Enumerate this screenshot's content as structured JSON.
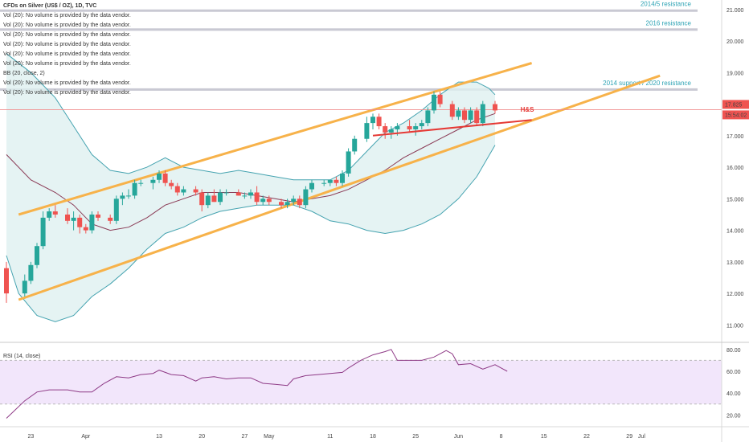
{
  "chart_data": {
    "type": "candlestick",
    "header": {
      "title": "CFDs on Silver (US$ / OZ), 1D, TVC",
      "indicator_lines": [
        "Vol (20): No volume is provided by the data vendor.",
        "Vol (20): No volume is provided by the data vendor.",
        "Vol (20): No volume is provided by the data vendor.",
        "Vol (20): No volume is provided by the data vendor.",
        "Vol (20): No volume is provided by the data vendor.",
        "Vol (20): No volume is provided by the data vendor.",
        "BB (20, close, 2)",
        "Vol (20): No volume is provided by the data vendor.",
        "Vol (20): No volume is provided by the data vendor."
      ]
    },
    "price_axis": {
      "ticks": [
        "21.000",
        "20.000",
        "19.000",
        "18.000",
        "17.000",
        "16.000",
        "15.000",
        "14.000",
        "13.000",
        "12.000",
        "11.000"
      ],
      "ylim": [
        10.5,
        21.3
      ],
      "last_price": "17.825",
      "countdown": "15:54:02"
    },
    "date_axis": {
      "ticks": [
        {
          "label": "23",
          "day": 4
        },
        {
          "label": "Apr",
          "day": 13
        },
        {
          "label": "13",
          "day": 25
        },
        {
          "label": "20",
          "day": 32
        },
        {
          "label": "27",
          "day": 39
        },
        {
          "label": "May",
          "day": 43
        },
        {
          "label": "11",
          "day": 53
        },
        {
          "label": "18",
          "day": 60
        },
        {
          "label": "25",
          "day": 67
        },
        {
          "label": "Jun",
          "day": 74
        },
        {
          "label": "8",
          "day": 81
        },
        {
          "label": "15",
          "day": 88
        },
        {
          "label": "22",
          "day": 95
        },
        {
          "label": "29",
          "day": 102
        },
        {
          "label": "Jul",
          "day": 104
        }
      ]
    },
    "candles": [
      {
        "day": 0,
        "o": 12.8,
        "h": 13.0,
        "l": 11.7,
        "c": 12.0
      },
      {
        "day": 3,
        "o": 12.0,
        "h": 12.6,
        "l": 11.9,
        "c": 12.4
      },
      {
        "day": 4,
        "o": 12.4,
        "h": 13.0,
        "l": 12.3,
        "c": 12.9
      },
      {
        "day": 5,
        "o": 12.9,
        "h": 13.6,
        "l": 12.8,
        "c": 13.5
      },
      {
        "day": 6,
        "o": 13.5,
        "h": 14.6,
        "l": 13.4,
        "c": 14.4
      },
      {
        "day": 7,
        "o": 14.4,
        "h": 14.7,
        "l": 14.3,
        "c": 14.6
      },
      {
        "day": 8,
        "o": 14.6,
        "h": 14.8,
        "l": 14.4,
        "c": 14.5
      },
      {
        "day": 10,
        "o": 14.5,
        "h": 14.7,
        "l": 14.2,
        "c": 14.3
      },
      {
        "day": 11,
        "o": 14.3,
        "h": 14.6,
        "l": 14.0,
        "c": 14.4
      },
      {
        "day": 12,
        "o": 14.4,
        "h": 14.5,
        "l": 13.9,
        "c": 14.1
      },
      {
        "day": 13,
        "o": 14.1,
        "h": 14.2,
        "l": 13.9,
        "c": 14.0
      },
      {
        "day": 14,
        "o": 14.0,
        "h": 14.6,
        "l": 13.9,
        "c": 14.5
      },
      {
        "day": 15,
        "o": 14.5,
        "h": 14.6,
        "l": 14.3,
        "c": 14.4
      },
      {
        "day": 17,
        "o": 14.4,
        "h": 14.5,
        "l": 14.2,
        "c": 14.3
      },
      {
        "day": 18,
        "o": 14.3,
        "h": 15.1,
        "l": 14.2,
        "c": 15.0
      },
      {
        "day": 19,
        "o": 15.0,
        "h": 15.2,
        "l": 14.8,
        "c": 15.1
      },
      {
        "day": 20,
        "o": 15.1,
        "h": 15.3,
        "l": 15.0,
        "c": 15.1
      },
      {
        "day": 21,
        "o": 15.1,
        "h": 15.6,
        "l": 15.0,
        "c": 15.5
      },
      {
        "day": 22,
        "o": 15.5,
        "h": 15.6,
        "l": 15.4,
        "c": 15.5
      },
      {
        "day": 24,
        "o": 15.5,
        "h": 15.7,
        "l": 15.3,
        "c": 15.6
      },
      {
        "day": 25,
        "o": 15.6,
        "h": 15.9,
        "l": 15.5,
        "c": 15.8
      },
      {
        "day": 26,
        "o": 15.8,
        "h": 15.9,
        "l": 15.4,
        "c": 15.5
      },
      {
        "day": 27,
        "o": 15.5,
        "h": 15.6,
        "l": 15.3,
        "c": 15.4
      },
      {
        "day": 28,
        "o": 15.4,
        "h": 15.5,
        "l": 15.1,
        "c": 15.2
      },
      {
        "day": 29,
        "o": 15.2,
        "h": 15.4,
        "l": 15.1,
        "c": 15.3
      },
      {
        "day": 31,
        "o": 15.3,
        "h": 15.4,
        "l": 15.1,
        "c": 15.2
      },
      {
        "day": 32,
        "o": 15.2,
        "h": 15.3,
        "l": 14.6,
        "c": 14.8
      },
      {
        "day": 33,
        "o": 14.8,
        "h": 15.2,
        "l": 14.7,
        "c": 15.1
      },
      {
        "day": 34,
        "o": 15.1,
        "h": 15.3,
        "l": 14.9,
        "c": 14.9
      },
      {
        "day": 35,
        "o": 14.9,
        "h": 15.3,
        "l": 14.8,
        "c": 15.2
      },
      {
        "day": 36,
        "o": 15.2,
        "h": 15.3,
        "l": 15.1,
        "c": 15.2
      },
      {
        "day": 38,
        "o": 15.2,
        "h": 15.3,
        "l": 15.1,
        "c": 15.1
      },
      {
        "day": 39,
        "o": 15.1,
        "h": 15.2,
        "l": 15.0,
        "c": 15.1
      },
      {
        "day": 40,
        "o": 15.1,
        "h": 15.3,
        "l": 15.0,
        "c": 15.2
      },
      {
        "day": 41,
        "o": 15.2,
        "h": 15.4,
        "l": 14.8,
        "c": 14.9
      },
      {
        "day": 42,
        "o": 14.9,
        "h": 15.1,
        "l": 14.8,
        "c": 15.0
      },
      {
        "day": 43,
        "o": 15.0,
        "h": 15.1,
        "l": 14.8,
        "c": 14.9
      },
      {
        "day": 45,
        "o": 14.9,
        "h": 15.0,
        "l": 14.7,
        "c": 14.8
      },
      {
        "day": 46,
        "o": 14.8,
        "h": 15.0,
        "l": 14.7,
        "c": 14.9
      },
      {
        "day": 47,
        "o": 14.9,
        "h": 15.1,
        "l": 14.8,
        "c": 15.0
      },
      {
        "day": 48,
        "o": 15.0,
        "h": 15.1,
        "l": 14.7,
        "c": 14.8
      },
      {
        "day": 49,
        "o": 14.8,
        "h": 15.4,
        "l": 14.7,
        "c": 15.3
      },
      {
        "day": 50,
        "o": 15.3,
        "h": 15.6,
        "l": 15.2,
        "c": 15.5
      },
      {
        "day": 52,
        "o": 15.5,
        "h": 15.6,
        "l": 15.4,
        "c": 15.5
      },
      {
        "day": 53,
        "o": 15.5,
        "h": 15.6,
        "l": 15.4,
        "c": 15.6
      },
      {
        "day": 54,
        "o": 15.6,
        "h": 15.7,
        "l": 15.4,
        "c": 15.5
      },
      {
        "day": 55,
        "o": 15.5,
        "h": 15.9,
        "l": 15.4,
        "c": 15.8
      },
      {
        "day": 56,
        "o": 15.8,
        "h": 16.6,
        "l": 15.7,
        "c": 16.5
      },
      {
        "day": 57,
        "o": 16.5,
        "h": 17.0,
        "l": 16.4,
        "c": 16.9
      },
      {
        "day": 59,
        "o": 16.9,
        "h": 17.6,
        "l": 16.8,
        "c": 17.4
      },
      {
        "day": 60,
        "o": 17.4,
        "h": 17.7,
        "l": 17.2,
        "c": 17.6
      },
      {
        "day": 61,
        "o": 17.6,
        "h": 17.7,
        "l": 17.2,
        "c": 17.3
      },
      {
        "day": 62,
        "o": 17.3,
        "h": 17.4,
        "l": 16.9,
        "c": 17.1
      },
      {
        "day": 63,
        "o": 17.1,
        "h": 17.3,
        "l": 16.9,
        "c": 17.2
      },
      {
        "day": 64,
        "o": 17.2,
        "h": 17.4,
        "l": 17.0,
        "c": 17.3
      },
      {
        "day": 66,
        "o": 17.3,
        "h": 17.5,
        "l": 17.1,
        "c": 17.2
      },
      {
        "day": 67,
        "o": 17.2,
        "h": 17.4,
        "l": 17.0,
        "c": 17.3
      },
      {
        "day": 68,
        "o": 17.3,
        "h": 17.5,
        "l": 17.2,
        "c": 17.4
      },
      {
        "day": 69,
        "o": 17.4,
        "h": 17.9,
        "l": 17.3,
        "c": 17.8
      },
      {
        "day": 70,
        "o": 17.8,
        "h": 18.4,
        "l": 17.7,
        "c": 18.3
      },
      {
        "day": 71,
        "o": 18.3,
        "h": 18.4,
        "l": 17.9,
        "c": 18.0
      },
      {
        "day": 73,
        "o": 18.0,
        "h": 18.1,
        "l": 17.5,
        "c": 17.6
      },
      {
        "day": 74,
        "o": 17.6,
        "h": 17.9,
        "l": 17.5,
        "c": 17.8
      },
      {
        "day": 75,
        "o": 17.8,
        "h": 17.9,
        "l": 17.4,
        "c": 17.5
      },
      {
        "day": 76,
        "o": 17.5,
        "h": 17.9,
        "l": 17.4,
        "c": 17.8
      },
      {
        "day": 77,
        "o": 17.8,
        "h": 17.9,
        "l": 17.3,
        "c": 17.4
      },
      {
        "day": 78,
        "o": 17.4,
        "h": 18.1,
        "l": 17.3,
        "c": 18.0
      },
      {
        "day": 80,
        "o": 18.0,
        "h": 18.1,
        "l": 17.7,
        "c": 17.8
      }
    ],
    "bollinger": {
      "upper": [
        [
          0,
          19.6
        ],
        [
          4,
          19.0
        ],
        [
          8,
          18.2
        ],
        [
          11,
          17.3
        ],
        [
          14,
          16.4
        ],
        [
          17,
          15.9
        ],
        [
          20,
          15.8
        ],
        [
          23,
          16.0
        ],
        [
          26,
          16.3
        ],
        [
          29,
          16.0
        ],
        [
          32,
          15.9
        ],
        [
          35,
          15.8
        ],
        [
          38,
          15.9
        ],
        [
          41,
          15.8
        ],
        [
          44,
          15.7
        ],
        [
          47,
          15.6
        ],
        [
          50,
          15.6
        ],
        [
          53,
          15.6
        ],
        [
          56,
          15.9
        ],
        [
          59,
          16.5
        ],
        [
          62,
          17.1
        ],
        [
          65,
          17.4
        ],
        [
          68,
          17.8
        ],
        [
          71,
          18.3
        ],
        [
          74,
          18.7
        ],
        [
          77,
          18.7
        ],
        [
          79,
          18.5
        ],
        [
          80,
          18.3
        ]
      ],
      "middle": [
        [
          0,
          16.4
        ],
        [
          4,
          15.6
        ],
        [
          8,
          15.2
        ],
        [
          11,
          14.8
        ],
        [
          14,
          14.2
        ],
        [
          17,
          14.0
        ],
        [
          20,
          14.1
        ],
        [
          23,
          14.4
        ],
        [
          26,
          14.8
        ],
        [
          29,
          15.0
        ],
        [
          32,
          15.2
        ],
        [
          35,
          15.2
        ],
        [
          38,
          15.2
        ],
        [
          41,
          15.1
        ],
        [
          44,
          15.0
        ],
        [
          47,
          14.9
        ],
        [
          50,
          15.0
        ],
        [
          53,
          15.1
        ],
        [
          56,
          15.3
        ],
        [
          59,
          15.6
        ],
        [
          62,
          15.9
        ],
        [
          65,
          16.3
        ],
        [
          68,
          16.6
        ],
        [
          71,
          16.9
        ],
        [
          74,
          17.2
        ],
        [
          77,
          17.5
        ],
        [
          80,
          17.7
        ]
      ],
      "lower": [
        [
          0,
          13.2
        ],
        [
          2,
          12.0
        ],
        [
          5,
          11.3
        ],
        [
          8,
          11.1
        ],
        [
          11,
          11.3
        ],
        [
          14,
          11.9
        ],
        [
          17,
          12.3
        ],
        [
          20,
          12.8
        ],
        [
          23,
          13.4
        ],
        [
          26,
          13.9
        ],
        [
          29,
          14.1
        ],
        [
          32,
          14.4
        ],
        [
          35,
          14.6
        ],
        [
          38,
          14.7
        ],
        [
          41,
          14.8
        ],
        [
          44,
          14.8
        ],
        [
          47,
          14.8
        ],
        [
          50,
          14.6
        ],
        [
          53,
          14.3
        ],
        [
          56,
          14.2
        ],
        [
          59,
          14.0
        ],
        [
          62,
          13.9
        ],
        [
          65,
          14.0
        ],
        [
          68,
          14.2
        ],
        [
          71,
          14.5
        ],
        [
          74,
          15.0
        ],
        [
          77,
          15.7
        ],
        [
          80,
          16.7
        ]
      ]
    },
    "channel": {
      "upper_line": [
        [
          2,
          14.5
        ],
        [
          86,
          19.3
        ]
      ],
      "lower_line": [
        [
          2,
          11.8
        ],
        [
          107,
          18.9
        ]
      ]
    },
    "hs_neckline": [
      [
        60,
        17.0
      ],
      [
        86,
        17.5
      ]
    ],
    "hs_label": "H&S",
    "resistance_levels": [
      {
        "label": "2014/5 resistance",
        "value": 20.95
      },
      {
        "label": "2016 resistance",
        "value": 20.35
      },
      {
        "label": "2014 support / 2020 resistance",
        "value": 18.45
      }
    ],
    "rsi": {
      "label": "RSI (14, close)",
      "ticks": [
        "80.00",
        "60.00",
        "40.00",
        "20.00"
      ],
      "band": [
        30,
        70
      ],
      "ylim": [
        10,
        85
      ],
      "values": [
        [
          0,
          17
        ],
        [
          3,
          33
        ],
        [
          5,
          41
        ],
        [
          7,
          43
        ],
        [
          10,
          43
        ],
        [
          12,
          41
        ],
        [
          14,
          41
        ],
        [
          16,
          49
        ],
        [
          18,
          55
        ],
        [
          20,
          54
        ],
        [
          22,
          57
        ],
        [
          24,
          58
        ],
        [
          25,
          61
        ],
        [
          27,
          57
        ],
        [
          29,
          56
        ],
        [
          31,
          51
        ],
        [
          32,
          54
        ],
        [
          34,
          55
        ],
        [
          36,
          53
        ],
        [
          38,
          54
        ],
        [
          40,
          54
        ],
        [
          42,
          49
        ],
        [
          44,
          48
        ],
        [
          46,
          47
        ],
        [
          47,
          53
        ],
        [
          49,
          56
        ],
        [
          51,
          57
        ],
        [
          53,
          58
        ],
        [
          55,
          59
        ],
        [
          56,
          63
        ],
        [
          58,
          70
        ],
        [
          60,
          75
        ],
        [
          62,
          78
        ],
        [
          63,
          80
        ],
        [
          64,
          70
        ],
        [
          66,
          70
        ],
        [
          68,
          70
        ],
        [
          70,
          73
        ],
        [
          72,
          79
        ],
        [
          73,
          76
        ],
        [
          74,
          66
        ],
        [
          76,
          67
        ],
        [
          78,
          62
        ],
        [
          80,
          66
        ],
        [
          81,
          63
        ],
        [
          82,
          60
        ]
      ]
    }
  }
}
